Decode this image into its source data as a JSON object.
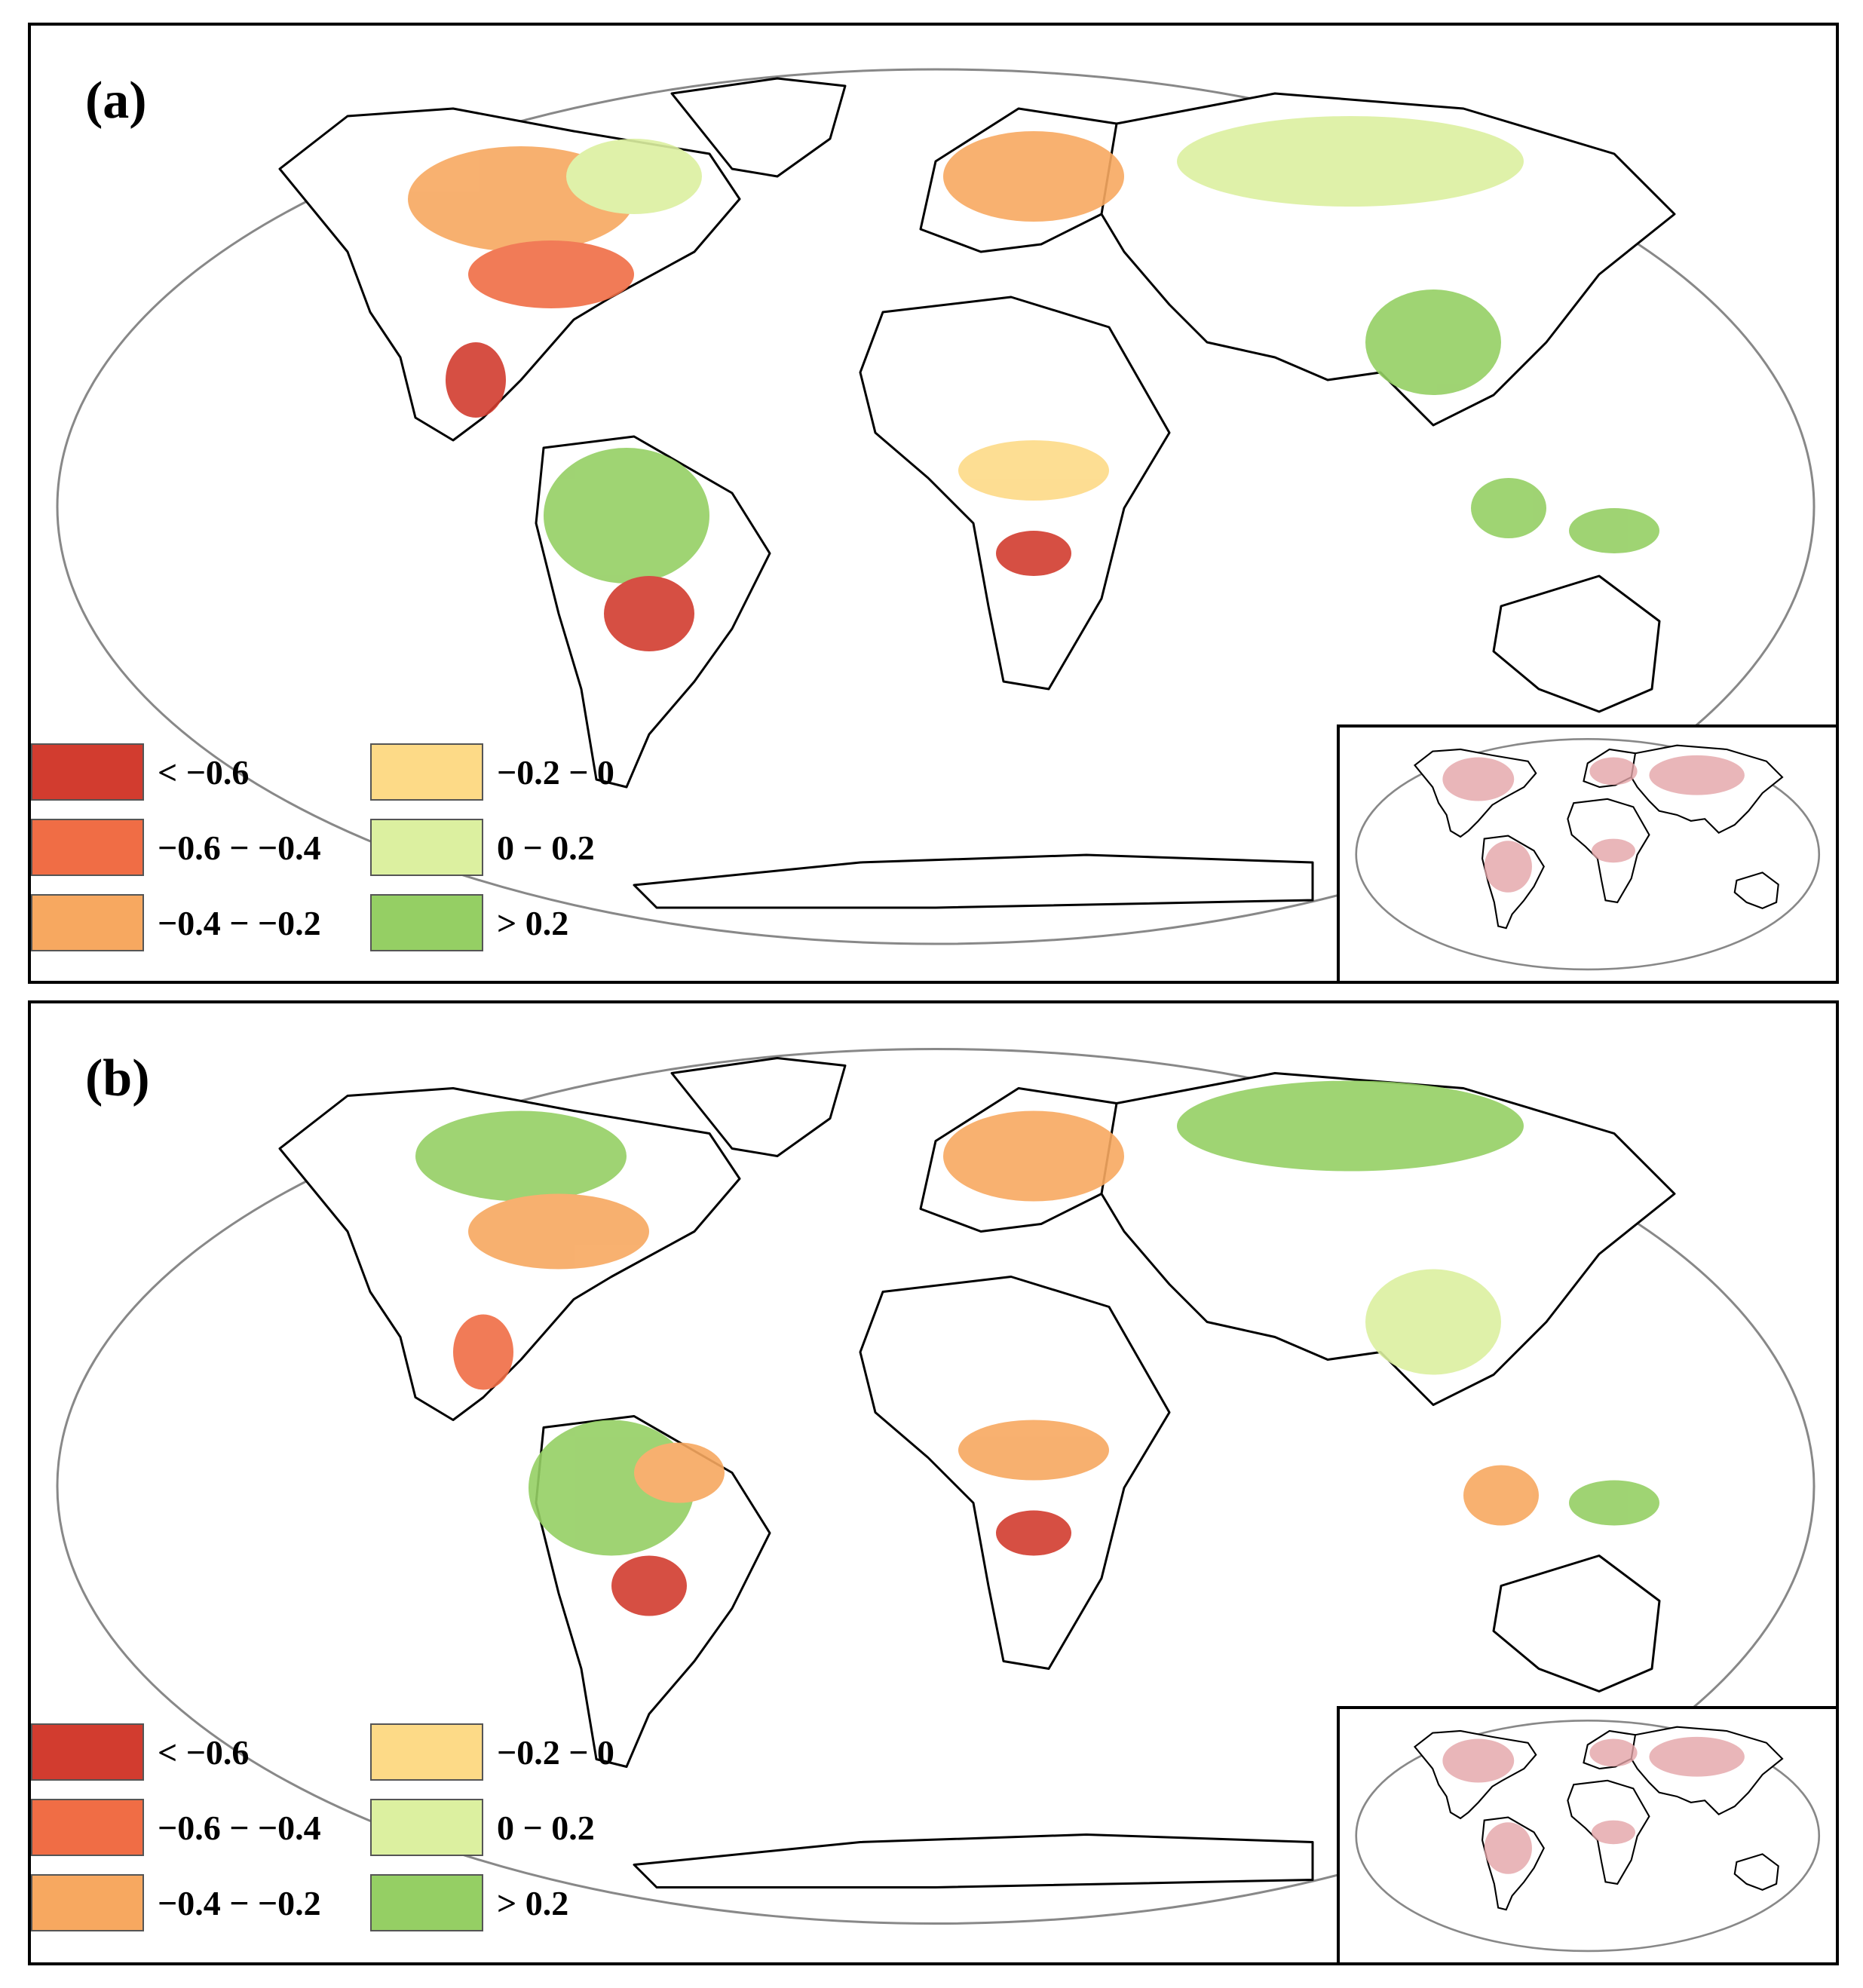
{
  "panels": [
    {
      "id": "a",
      "label": "(a)"
    },
    {
      "id": "b",
      "label": "(b)"
    }
  ],
  "legend": [
    {
      "label": "< −0.6",
      "color": "#d23c2f"
    },
    {
      "label": "−0.6 − −0.4",
      "color": "#f06d45"
    },
    {
      "label": "−0.4 − −0.2",
      "color": "#f7a860"
    },
    {
      "label": "−0.2 − 0",
      "color": "#fdda87"
    },
    {
      "label": "0 − 0.2",
      "color": "#dcf0a0"
    },
    {
      "label": "> 0.2",
      "color": "#95cf64"
    }
  ],
  "colors": {
    "coastline": "#000000",
    "globe_outline": "#888888",
    "inset_tint": "#e4a4a8"
  }
}
